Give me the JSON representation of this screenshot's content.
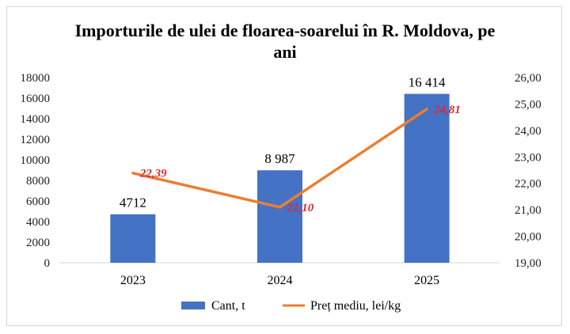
{
  "chart_data": {
    "type": "bar+line",
    "title": "Importurile de ulei de floarea-soarelui în R. Moldova, pe",
    "title_line2": "ani",
    "categories": [
      "2023",
      "2024",
      "2025"
    ],
    "series": [
      {
        "name": "Cant, t",
        "type": "bar",
        "axis": "left",
        "values": [
          4712,
          8987,
          16414
        ],
        "labels": [
          "4712",
          "8 987",
          "16 414"
        ],
        "color": "#4472c4"
      },
      {
        "name": "Preț mediu, lei/kg",
        "type": "line",
        "axis": "right",
        "values": [
          22.39,
          21.1,
          24.81
        ],
        "labels": [
          "22,39",
          "21,10",
          "24,81"
        ],
        "color": "#ed7d31",
        "label_color": "#e0292f"
      }
    ],
    "y_left": {
      "min": 0,
      "max": 18000,
      "ticks": [
        "0",
        "2000",
        "4000",
        "6000",
        "8000",
        "10000",
        "12000",
        "14000",
        "16000",
        "18000"
      ]
    },
    "y_right": {
      "min": 19,
      "max": 26,
      "ticks": [
        "19,00",
        "20,00",
        "21,00",
        "22,00",
        "23,00",
        "24,00",
        "25,00",
        "26,00"
      ]
    },
    "legend_position": "bottom",
    "grid": false
  }
}
